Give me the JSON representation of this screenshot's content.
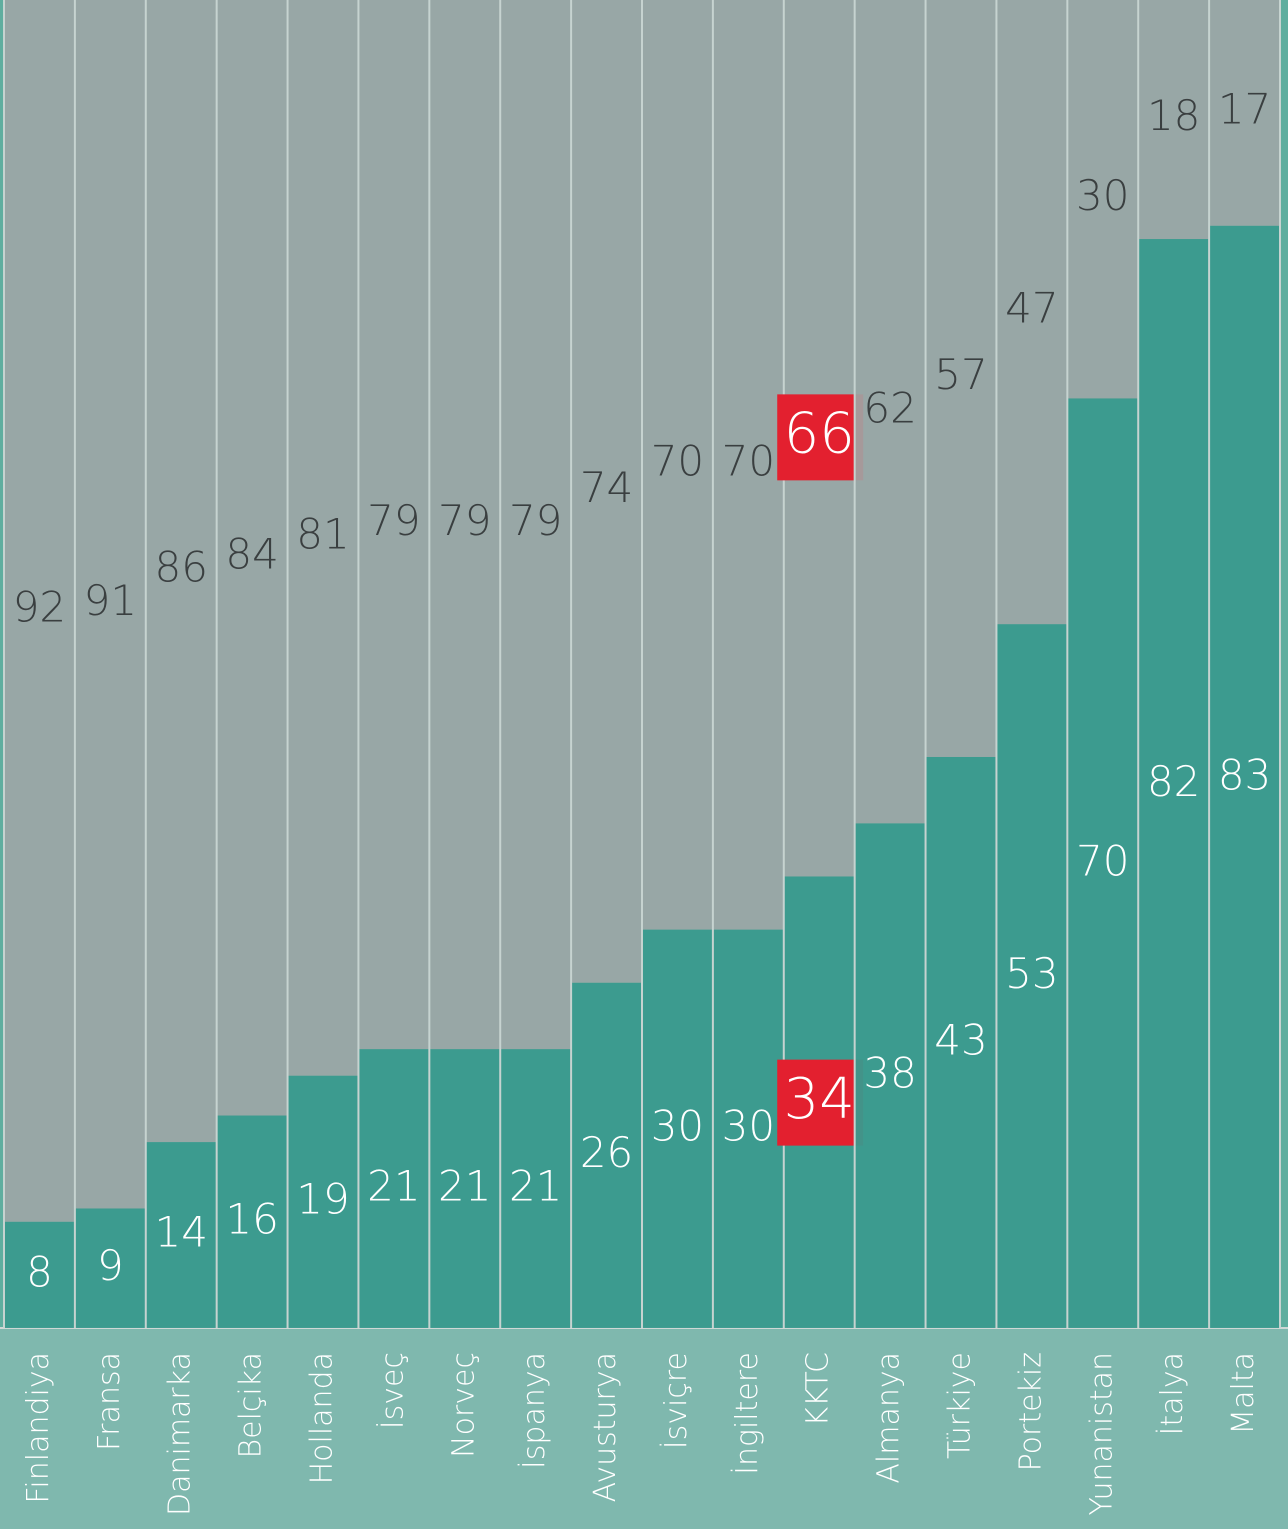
{
  "chart_data": {
    "type": "bar",
    "stacked": true,
    "categories": [
      "Finlandiya",
      "Fransa",
      "Danimarka",
      "Belçika",
      "Hollanda",
      "İsveç",
      "Norveç",
      "İspanya",
      "Avusturya",
      "İsviçre",
      "İngiltere",
      "KKTC",
      "Almanya",
      "Türkiye",
      "Portekiz",
      "Yunanistan",
      "İtalya",
      "Malta"
    ],
    "series": [
      {
        "color": "#3a9a8e",
        "values": [
          8,
          9,
          14,
          16,
          19,
          21,
          21,
          21,
          26,
          30,
          30,
          34,
          38,
          43,
          53,
          70,
          82,
          83
        ]
      },
      {
        "color": "#9ea6a6",
        "values": [
          92,
          91,
          86,
          84,
          81,
          79,
          79,
          79,
          74,
          70,
          70,
          66,
          62,
          57,
          47,
          30,
          18,
          17
        ]
      }
    ],
    "ylim": [
      0,
      100
    ],
    "highlight": "KKTC",
    "highlight_color": "#e3202f"
  }
}
